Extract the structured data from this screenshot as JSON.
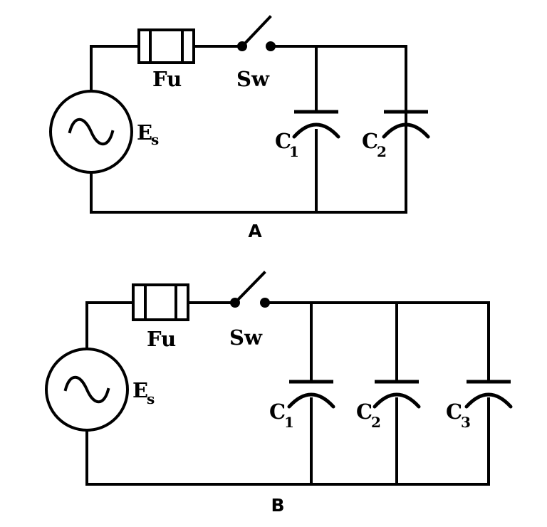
{
  "circuit_a": {
    "caption": "A",
    "fuse_label": "Fu",
    "switch_label": "Sw",
    "source_label": "E",
    "source_sub": "s",
    "capacitors": [
      {
        "label": "C",
        "sub": "1"
      },
      {
        "label": "C",
        "sub": "2"
      }
    ]
  },
  "circuit_b": {
    "caption": "B",
    "fuse_label": "Fu",
    "switch_label": "Sw",
    "source_label": "E",
    "source_sub": "s",
    "capacitors": [
      {
        "label": "C",
        "sub": "1"
      },
      {
        "label": "C",
        "sub": "2"
      },
      {
        "label": "C",
        "sub": "3"
      }
    ]
  }
}
